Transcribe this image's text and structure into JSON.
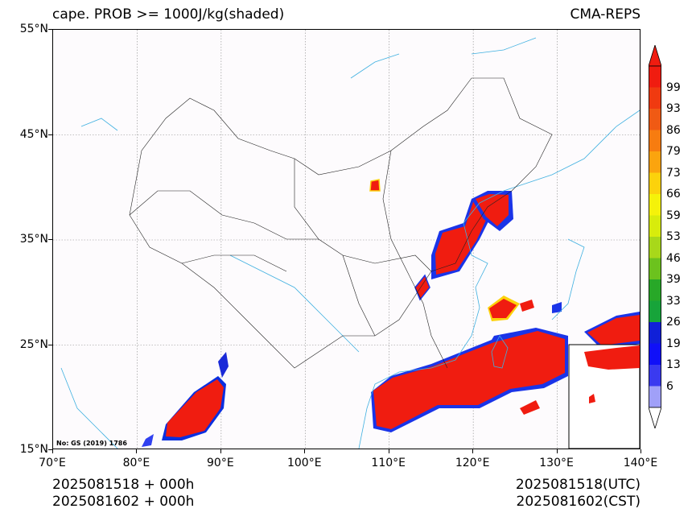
{
  "title": {
    "left": "cape. PROB >= 1000J/kg(shaded)",
    "right": "CMA-REPS"
  },
  "axes": {
    "lat_labels": [
      "55°N",
      "45°N",
      "35°N",
      "25°N",
      "15°N"
    ],
    "lat_values": [
      55,
      45,
      35,
      25,
      15
    ],
    "lon_labels": [
      "70°E",
      "80°E",
      "90°E",
      "100°E",
      "110°E",
      "120°E",
      "130°E",
      "140°E"
    ],
    "lon_values": [
      70,
      80,
      90,
      100,
      110,
      120,
      130,
      140
    ],
    "lat_range": [
      15,
      55
    ],
    "lon_range": [
      70,
      140
    ],
    "grid": true
  },
  "colorbar": {
    "labels": [
      "99",
      "93",
      "86",
      "79",
      "73",
      "66",
      "59",
      "53",
      "46",
      "39",
      "33",
      "26",
      "19",
      "13",
      "6"
    ],
    "colors": [
      "#f01c10",
      "#f03a10",
      "#f05a14",
      "#f77c10",
      "#fba40e",
      "#fcd20c",
      "#f5f20a",
      "#d8ec0c",
      "#a8d81a",
      "#6cc21e",
      "#28a828",
      "#17a43a",
      "#1020d8",
      "#1010f8",
      "#3a3af0",
      "#a0a0f8"
    ]
  },
  "footer": {
    "left_line1": "2025081518  +  000h",
    "left_line2": "2025081602  +  000h",
    "right_line1": "2025081518(UTC)",
    "right_line2": "2025081602(CST)"
  },
  "map_note": "No: GS (2019) 1786"
}
